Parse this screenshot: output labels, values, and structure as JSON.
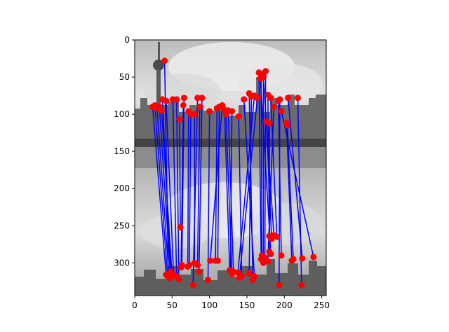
{
  "figure": {
    "background": "#ffffff",
    "line_color": "#0000ff",
    "point_color": "#ff0000"
  },
  "axes": {
    "x_range": [
      0,
      256
    ],
    "y_range": [
      344,
      0
    ],
    "x_ticks": [
      "0",
      "50",
      "100",
      "150",
      "200",
      "250"
    ],
    "y_ticks": [
      "0",
      "50",
      "100",
      "150",
      "200",
      "250",
      "300"
    ]
  },
  "image": {
    "description_icon": "grayscale-skyline-photo-pair",
    "split_y": 172
  },
  "matches": [
    [
      40,
      28,
      45,
      315
    ],
    [
      37,
      80,
      48,
      312
    ],
    [
      42,
      82,
      52,
      316
    ],
    [
      51,
      80,
      56,
      318
    ],
    [
      56,
      80,
      59,
      322
    ],
    [
      66,
      78,
      63,
      303
    ],
    [
      24,
      90,
      42,
      316
    ],
    [
      27,
      88,
      44,
      318
    ],
    [
      30,
      92,
      46,
      320
    ],
    [
      33,
      90,
      48,
      320
    ],
    [
      36,
      95,
      50,
      318
    ],
    [
      65,
      88,
      62,
      306
    ],
    [
      60,
      107,
      61,
      252
    ],
    [
      72,
      96,
      71,
      305
    ],
    [
      75,
      100,
      73,
      303
    ],
    [
      80,
      100,
      80,
      300
    ],
    [
      84,
      78,
      78,
      330
    ],
    [
      90,
      78,
      86,
      312
    ],
    [
      87,
      90,
      84,
      303
    ],
    [
      100,
      96,
      98,
      323
    ],
    [
      110,
      92,
      108,
      297
    ],
    [
      113,
      90,
      111,
      297
    ],
    [
      117,
      88,
      101,
      297
    ],
    [
      120,
      94,
      127,
      310
    ],
    [
      122,
      100,
      130,
      315
    ],
    [
      125,
      95,
      132,
      312
    ],
    [
      139,
      103,
      143,
      318
    ],
    [
      153,
      72,
      158,
      323
    ],
    [
      156,
      76,
      153,
      314
    ],
    [
      160,
      75,
      138,
      313
    ],
    [
      164,
      78,
      140,
      320
    ],
    [
      166,
      44,
      169,
      295
    ],
    [
      169,
      48,
      170,
      290
    ],
    [
      172,
      46,
      172,
      300
    ],
    [
      175,
      42,
      174,
      293
    ],
    [
      178,
      74,
      180,
      264
    ],
    [
      180,
      112,
      180,
      285
    ],
    [
      176,
      110,
      183,
      268
    ],
    [
      192,
      82,
      196,
      290
    ],
    [
      194,
      80,
      193,
      330
    ],
    [
      203,
      112,
      210,
      297
    ],
    [
      204,
      115,
      212,
      295
    ],
    [
      205,
      78,
      224,
      294
    ],
    [
      218,
      78,
      223,
      330
    ],
    [
      172,
      50,
      186,
      263
    ],
    [
      182,
      78,
      190,
      265
    ],
    [
      168,
      52,
      182,
      288
    ],
    [
      186,
      90,
      178,
      298
    ],
    [
      130,
      96,
      128,
      310
    ],
    [
      146,
      80,
      160,
      318
    ],
    [
      196,
      96,
      239,
      292
    ]
  ]
}
